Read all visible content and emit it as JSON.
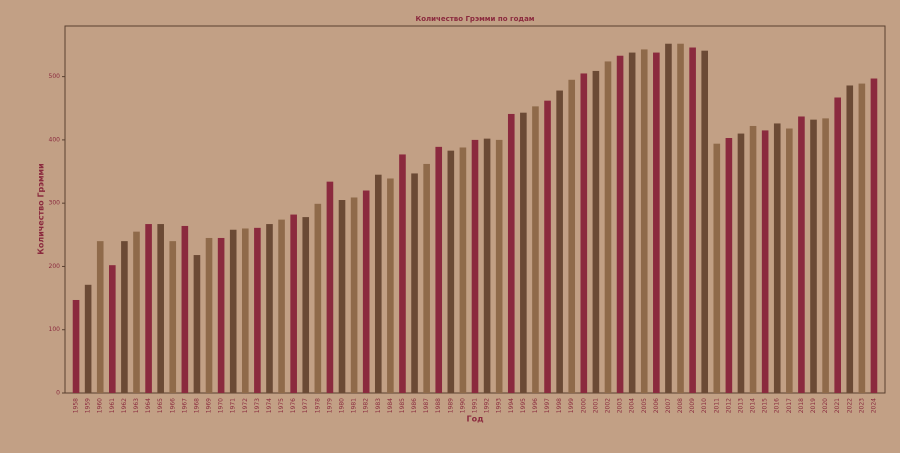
{
  "chart_data": {
    "type": "bar",
    "title": "Количество Грэмми по годам",
    "x_label": "Год",
    "y_label": "Количество Грэмми",
    "categories": [
      "1958",
      "1959",
      "1960",
      "1961",
      "1962",
      "1963",
      "1964",
      "1965",
      "1966",
      "1967",
      "1968",
      "1969",
      "1970",
      "1971",
      "1972",
      "1973",
      "1974",
      "1975",
      "1976",
      "1977",
      "1978",
      "1979",
      "1980",
      "1981",
      "1982",
      "1983",
      "1984",
      "1985",
      "1986",
      "1987",
      "1988",
      "1989",
      "1990",
      "1991",
      "1992",
      "1993",
      "1994",
      "1995",
      "1996",
      "1997",
      "1998",
      "1999",
      "2000",
      "2001",
      "2002",
      "2003",
      "2004",
      "2005",
      "2006",
      "2007",
      "2008",
      "2009",
      "2010",
      "2011",
      "2012",
      "2013",
      "2014",
      "2015",
      "2016",
      "2017",
      "2018",
      "2019",
      "2020",
      "2021",
      "2022",
      "2023",
      "2024"
    ],
    "values": [
      147,
      171,
      240,
      202,
      240,
      255,
      267,
      267,
      240,
      264,
      218,
      245,
      245,
      258,
      260,
      261,
      267,
      274,
      282,
      278,
      299,
      334,
      305,
      309,
      320,
      345,
      339,
      377,
      347,
      362,
      389,
      383,
      388,
      400,
      402,
      400,
      441,
      443,
      453,
      462,
      478,
      495,
      505,
      509,
      524,
      533,
      538,
      543,
      538,
      552,
      552,
      546,
      541,
      394,
      403,
      410,
      422,
      415,
      426,
      418,
      437,
      432,
      434,
      467,
      486,
      489,
      497
    ],
    "colors": [
      "#8b2a3e",
      "#6b4a35",
      "#8f6a4a"
    ],
    "ylim": [
      0,
      580
    ],
    "yticks": [
      0,
      100,
      200,
      300,
      400,
      500
    ]
  }
}
